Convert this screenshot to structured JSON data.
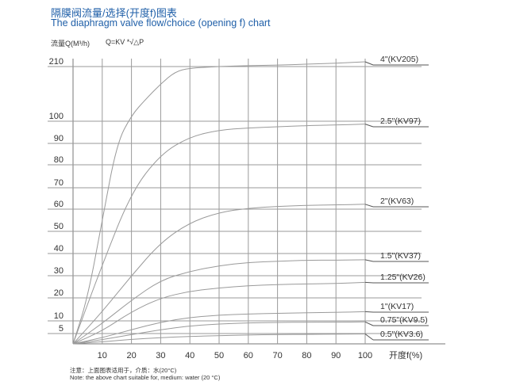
{
  "header": {
    "title_cn": "隔膜阀流量/选择(开度f)图表",
    "title_en": "The diaphragm valve flow/choice (opening f) chart",
    "ylabel": "流量Q(M³/h)",
    "formula": "Q=KV *√△P"
  },
  "footer": {
    "note_cn": "注意：上面图表适用于，介质：水(20°C)",
    "note_en": "Note: the above chart suitable for, medium: water (20 °C)"
  },
  "colors": {
    "title": "#1f5fa8",
    "grid": "#9a9a9a",
    "curve": "#9a9a9a"
  },
  "chart_data": {
    "type": "line",
    "title": "The diaphragm valve flow/choice (opening f) chart",
    "xlabel": "开度f(%)",
    "ylabel": "流量Q(M³/h)",
    "x_ticks": [
      10,
      20,
      30,
      40,
      50,
      60,
      70,
      80,
      90,
      100
    ],
    "y_ticks": [
      5,
      10,
      20,
      30,
      40,
      50,
      60,
      70,
      80,
      90,
      100,
      210
    ],
    "xlim": [
      0,
      100
    ],
    "grid": true,
    "series": [
      {
        "name": "4\"(KV205)",
        "x": [
          0,
          5,
          10,
          15,
          20,
          25,
          30,
          35,
          40,
          50,
          60,
          70,
          80,
          90,
          100
        ],
        "y": [
          0,
          20,
          55,
          90,
          112,
          145,
          175,
          200,
          207,
          210,
          212,
          213,
          215,
          217,
          220
        ]
      },
      {
        "name": "2.5\"(KV97)",
        "x": [
          0,
          10,
          20,
          30,
          40,
          50,
          60,
          70,
          80,
          90,
          100
        ],
        "y": [
          0,
          35,
          68,
          85,
          93,
          96,
          97,
          97.5,
          98,
          98.3,
          98.7
        ]
      },
      {
        "name": "2\"(KV63)",
        "x": [
          0,
          10,
          20,
          30,
          40,
          50,
          60,
          70,
          80,
          90,
          100
        ],
        "y": [
          0,
          14,
          30,
          45,
          54,
          58.5,
          60.5,
          61.3,
          61.8,
          62,
          62.3
        ]
      },
      {
        "name": "1.5\"(KV37)",
        "x": [
          0,
          10,
          20,
          30,
          40,
          50,
          60,
          70,
          80,
          90,
          100
        ],
        "y": [
          0,
          9,
          19,
          28,
          32,
          34.5,
          36,
          36.5,
          37,
          37,
          37.2
        ]
      },
      {
        "name": "1.25\"(KV26)",
        "x": [
          0,
          10,
          20,
          30,
          40,
          50,
          60,
          70,
          80,
          90,
          100
        ],
        "y": [
          0,
          6,
          14,
          20,
          23,
          24.5,
          25.5,
          26,
          26.3,
          26.5,
          27
        ]
      },
      {
        "name": "1\"(KV17)",
        "x": [
          0,
          10,
          20,
          30,
          40,
          50,
          60,
          70,
          80,
          90,
          100
        ],
        "y": [
          0,
          3,
          6.5,
          9.5,
          11.5,
          12.5,
          13,
          13.3,
          13.5,
          13.7,
          14
        ]
      },
      {
        "name": "0.75\"(KV9.5)",
        "x": [
          0,
          10,
          20,
          30,
          40,
          50,
          60,
          70,
          80,
          90,
          100
        ],
        "y": [
          0,
          2,
          4.5,
          6.5,
          8,
          8.8,
          9.2,
          9.4,
          9.5,
          9.5,
          9.6
        ]
      },
      {
        "name": "0.5\"(KV3.6)",
        "x": [
          0,
          10,
          20,
          30,
          40,
          50,
          60,
          70,
          80,
          90,
          100
        ],
        "y": [
          0,
          1,
          2.2,
          3,
          3.6,
          4,
          4.3,
          4.5,
          4.6,
          4.7,
          4.8
        ]
      }
    ]
  }
}
